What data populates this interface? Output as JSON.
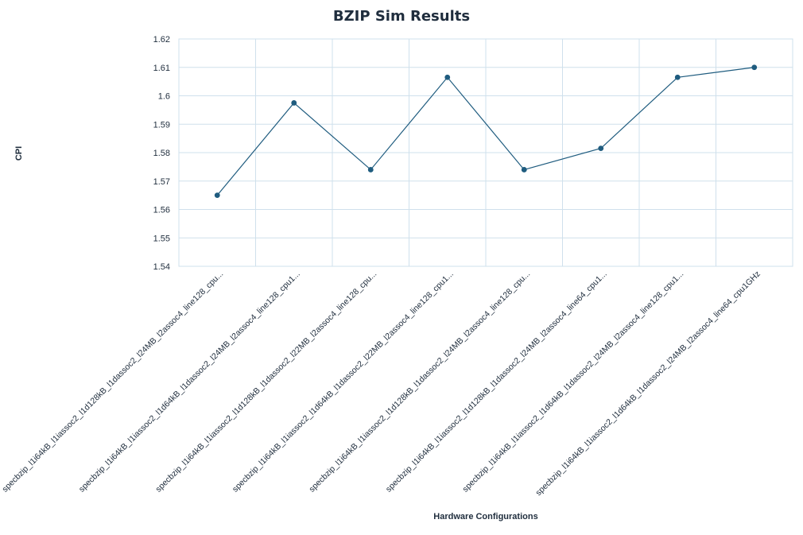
{
  "chart_data": {
    "type": "line",
    "title": "BZIP Sim Results",
    "xlabel": "Hardware Configurations",
    "ylabel": "CPI",
    "ylim": [
      1.54,
      1.62
    ],
    "yticks": [
      "1.54",
      "1.55",
      "1.56",
      "1.57",
      "1.58",
      "1.59",
      "1.6",
      "1.61",
      "1.62"
    ],
    "grid": true,
    "categories": [
      "specbzip_l1i64kB_l1iassoc2_l1d128kB_l1dassoc2_l24MB_l2assoc4_line128_cpu...",
      "specbzip_l1i64kB_l1iassoc2_l1d64kB_l1dassoc2_l24MB_l2assoc4_line128_cpu1...",
      "specbzip_l1i64kB_l1iassoc2_l1d128kB_l1dassoc2_l22MB_l2assoc4_line128_cpu...",
      "specbzip_l1i64kB_l1iassoc2_l1d64kB_l1dassoc2_l22MB_l2assoc4_line128_cpu1...",
      "specbzip_l1i64kB_l1iassoc2_l1d128kB_l1dassoc2_l24MB_l2assoc4_line128_cpu...",
      "specbzip_l1i64kB_l1iassoc2_l1d128kB_l1dassoc2_l24MB_l2assoc4_line64_cpu1...",
      "specbzip_l1i64kB_l1iassoc2_l1d64kB_l1dassoc2_l24MB_l2assoc4_line128_cpu1...",
      "specbzip_l1i64kB_l1iassoc2_l1d64kB_l1dassoc2_l24MB_l2assoc4_line64_cpu1GHz"
    ],
    "series": [
      {
        "values": [
          1.565,
          1.5975,
          1.574,
          1.6065,
          1.574,
          1.5815,
          1.6065,
          1.61
        ],
        "color": "#1f5c7f"
      }
    ]
  }
}
